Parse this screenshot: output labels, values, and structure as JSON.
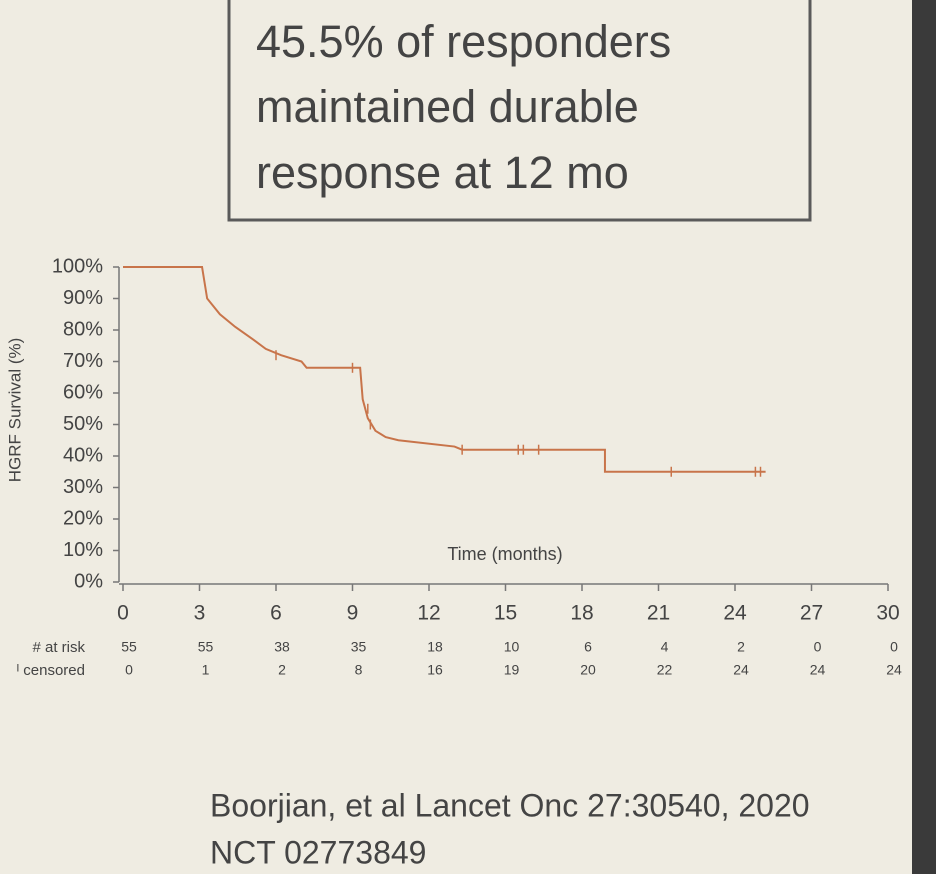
{
  "chart_data": {
    "type": "step",
    "annotation": [
      "45.5% of responders",
      "maintained durable",
      "response at 12 mo"
    ],
    "ylabel": "HGRF Survival (%)",
    "xlabel": "Time (months)",
    "color": "#c8744a",
    "x": [
      0,
      3.1,
      3.3,
      3.8,
      4.4,
      5.1,
      5.6,
      6.2,
      7.0,
      7.2,
      9.3,
      9.4,
      9.6,
      9.9,
      10.3,
      10.8,
      13.0,
      13.3,
      18.9,
      18.9,
      25.2
    ],
    "values": [
      100,
      100,
      90,
      85,
      81,
      77,
      74,
      72,
      70,
      68,
      68,
      58,
      52,
      48,
      46,
      45,
      43,
      42,
      42,
      35,
      35
    ],
    "censor_marks": {
      "x": [
        6.0,
        9.0,
        9.6,
        9.7,
        13.3,
        15.5,
        15.7,
        16.3,
        21.5,
        24.8,
        25.0
      ],
      "values": [
        72,
        68,
        55,
        50,
        42,
        42,
        42,
        42,
        35,
        35,
        35
      ]
    },
    "xlim": [
      0,
      30
    ],
    "xticks": [
      0,
      3,
      6,
      9,
      12,
      15,
      18,
      21,
      24,
      27,
      30
    ],
    "ylim": [
      0,
      100
    ],
    "yticks": [
      {
        "value": 0,
        "label": "0%"
      },
      {
        "value": 10,
        "label": "10%"
      },
      {
        "value": 20,
        "label": "20%"
      },
      {
        "value": 30,
        "label": "30%"
      },
      {
        "value": 40,
        "label": "40%"
      },
      {
        "value": 50,
        "label": "50%"
      },
      {
        "value": 60,
        "label": "60%"
      },
      {
        "value": 70,
        "label": "70%"
      },
      {
        "value": 80,
        "label": "80%"
      },
      {
        "value": 90,
        "label": "90%"
      },
      {
        "value": 100,
        "label": "100%"
      }
    ],
    "risk_table": [
      {
        "label": "# at risk",
        "values": [
          55,
          55,
          38,
          35,
          18,
          10,
          6,
          4,
          2,
          0,
          0
        ]
      },
      {
        "label": "ᴵ censored",
        "values": [
          0,
          1,
          2,
          8,
          16,
          19,
          20,
          22,
          24,
          24,
          24
        ]
      }
    ],
    "citation": [
      "Boorjian, et al Lancet Onc 27:30540, 2020",
      "NCT 02773849"
    ]
  }
}
